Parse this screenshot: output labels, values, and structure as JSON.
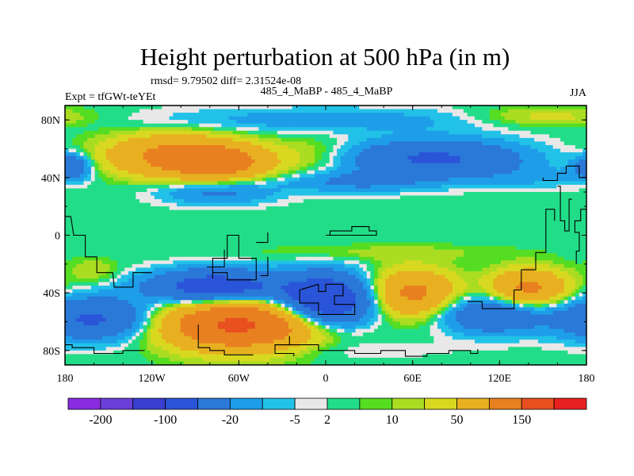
{
  "chart_data": {
    "type": "heatmap",
    "title": "Height perturbation at 500 hPa (in m)",
    "stats_line": "rmsd= 9.79502 diff= 2.31524e-08",
    "left_label": "Expt = tfGWt-teYEt",
    "center_label": "485_4_MaBP - 485_4_MaBP",
    "right_label": "JJA",
    "x_ticks": [
      {
        "lon": -180,
        "label": "180"
      },
      {
        "lon": -120,
        "label": "120W"
      },
      {
        "lon": -60,
        "label": "60W"
      },
      {
        "lon": 0,
        "label": "0"
      },
      {
        "lon": 60,
        "label": "60E"
      },
      {
        "lon": 120,
        "label": "120E"
      },
      {
        "lon": 180,
        "label": "180"
      }
    ],
    "y_ticks": [
      {
        "lat": 80,
        "label": "80N"
      },
      {
        "lat": 40,
        "label": "40N"
      },
      {
        "lat": 0,
        "label": "0"
      },
      {
        "lat": -40,
        "label": "40S"
      },
      {
        "lat": -80,
        "label": "80S"
      }
    ],
    "xlim": [
      -180,
      180
    ],
    "ylim": [
      -90,
      90
    ],
    "colorbar": {
      "colors": [
        "#8a2be2",
        "#6a3fd8",
        "#3a3fd0",
        "#2a55d8",
        "#2a78d8",
        "#1e9ee8",
        "#22c2e8",
        "#e8e8e8",
        "#22dd88",
        "#55dd22",
        "#aadd22",
        "#d8d820",
        "#e8b020",
        "#e88020",
        "#e85020",
        "#e82020"
      ],
      "labels": [
        "-200",
        "-100",
        "-20",
        "-5",
        "2",
        "10",
        "50",
        "150"
      ],
      "label_positions": [
        1,
        3,
        5,
        7,
        8,
        10,
        12,
        14
      ]
    },
    "anomalies": [
      {
        "lon": -105,
        "lat": 55,
        "amp": 60,
        "sx": 32,
        "sy": 10
      },
      {
        "lon": -72,
        "lat": 50,
        "amp": 60,
        "sx": 22,
        "sy": 8
      },
      {
        "lon": -175,
        "lat": 48,
        "amp": -40,
        "sx": 9,
        "sy": 6
      },
      {
        "lon": -10,
        "lat": 55,
        "amp": 12,
        "sx": 22,
        "sy": 9
      },
      {
        "lon": 75,
        "lat": 53,
        "amp": -55,
        "sx": 42,
        "sy": 9
      },
      {
        "lon": -75,
        "lat": 30,
        "amp": -25,
        "sx": 28,
        "sy": 6
      },
      {
        "lon": 20,
        "lat": 37,
        "amp": -22,
        "sx": 35,
        "sy": 5
      },
      {
        "lon": 150,
        "lat": 40,
        "amp": -10,
        "sx": 30,
        "sy": 5
      },
      {
        "lon": 0,
        "lat": 80,
        "amp": -15,
        "sx": 90,
        "sy": 6
      },
      {
        "lon": 150,
        "lat": 82,
        "amp": 15,
        "sx": 35,
        "sy": 5
      },
      {
        "lon": -75,
        "lat": -36,
        "amp": -80,
        "sx": 32,
        "sy": 8
      },
      {
        "lon": 0,
        "lat": -45,
        "amp": -95,
        "sx": 22,
        "sy": 12
      },
      {
        "lon": 60,
        "lat": -40,
        "amp": 60,
        "sx": 20,
        "sy": 11
      },
      {
        "lon": 140,
        "lat": -37,
        "amp": 60,
        "sx": 18,
        "sy": 9
      },
      {
        "lon": 115,
        "lat": -55,
        "amp": -45,
        "sx": 25,
        "sy": 9
      },
      {
        "lon": -60,
        "lat": -62,
        "amp": 110,
        "sx": 35,
        "sy": 12
      },
      {
        "lon": -160,
        "lat": -58,
        "amp": -55,
        "sx": 28,
        "sy": 10
      },
      {
        "lon": -160,
        "lat": -25,
        "amp": 10,
        "sx": 12,
        "sy": 6
      },
      {
        "lon": 40,
        "lat": -12,
        "amp": 7,
        "sx": 60,
        "sy": 4
      },
      {
        "lon": 0,
        "lat": -80,
        "amp": -5,
        "sx": 60,
        "sy": 5
      }
    ],
    "coastlines": [
      [
        [
          -180,
          13
        ],
        [
          -176,
          13
        ],
        [
          -174,
          0
        ],
        [
          -166,
          0
        ],
        [
          -166,
          -15
        ],
        [
          -158,
          -15
        ],
        [
          -158,
          -26
        ],
        [
          -147,
          -26
        ],
        [
          -146,
          -36
        ],
        [
          -133,
          -36
        ],
        [
          -133,
          -26
        ],
        [
          -120,
          -26
        ]
      ],
      [
        [
          -78,
          -30
        ],
        [
          -78,
          -16
        ],
        [
          -68,
          -16
        ],
        [
          -68,
          0
        ],
        [
          -60,
          0
        ],
        [
          -60,
          -16
        ],
        [
          -48,
          -16
        ],
        [
          -48,
          -31
        ],
        [
          -68,
          -31
        ],
        [
          -68,
          -26
        ],
        [
          -78,
          -26
        ]
      ],
      [
        [
          0,
          0
        ],
        [
          3,
          0
        ],
        [
          3,
          3
        ],
        [
          18,
          3
        ],
        [
          18,
          6
        ],
        [
          30,
          6
        ],
        [
          30,
          3
        ],
        [
          35,
          3
        ],
        [
          35,
          0
        ],
        [
          0,
          0
        ]
      ],
      [
        [
          -5,
          -34
        ],
        [
          -5,
          -39
        ],
        [
          0,
          -39
        ],
        [
          0,
          -34
        ],
        [
          12,
          -34
        ],
        [
          12,
          -42
        ],
        [
          6,
          -42
        ],
        [
          6,
          -48
        ],
        [
          20,
          -48
        ],
        [
          20,
          -55
        ],
        [
          -5,
          -55
        ],
        [
          -5,
          -47
        ],
        [
          -18,
          -47
        ],
        [
          -18,
          -38
        ],
        [
          -5,
          -34
        ]
      ],
      [
        [
          98,
          -46
        ],
        [
          108,
          -46
        ],
        [
          108,
          -51
        ],
        [
          130,
          -51
        ],
        [
          130,
          -38
        ],
        [
          135,
          -38
        ],
        [
          135,
          -24
        ],
        [
          145,
          -24
        ],
        [
          145,
          -12
        ],
        [
          152,
          -12
        ],
        [
          152,
          18
        ],
        [
          158,
          18
        ],
        [
          158,
          10
        ]
      ],
      [
        [
          160,
          34
        ],
        [
          162,
          34
        ],
        [
          162,
          10
        ],
        [
          165,
          10
        ],
        [
          165,
          3
        ],
        [
          168,
          3
        ],
        [
          168,
          25
        ],
        [
          170,
          25
        ]
      ],
      [
        [
          173,
          -20
        ],
        [
          173,
          -11
        ],
        [
          175,
          -11
        ],
        [
          175,
          2
        ],
        [
          172,
          2
        ],
        [
          172,
          10
        ],
        [
          176,
          10
        ],
        [
          176,
          18
        ],
        [
          180,
          18
        ]
      ],
      [
        [
          150,
          40
        ],
        [
          150,
          38
        ],
        [
          160,
          38
        ],
        [
          160,
          43
        ],
        [
          166,
          43
        ],
        [
          166,
          48
        ],
        [
          175,
          48
        ],
        [
          175,
          40
        ],
        [
          180,
          40
        ],
        [
          180,
          30
        ],
        [
          178,
          30
        ]
      ],
      [
        [
          -180,
          -76
        ],
        [
          -175,
          -76
        ],
        [
          -175,
          -78
        ],
        [
          -160,
          -78
        ],
        [
          -160,
          -82
        ],
        [
          -140,
          -82
        ],
        [
          -140,
          -80
        ],
        [
          -125,
          -80
        ]
      ],
      [
        [
          -88,
          -62
        ],
        [
          -88,
          -78
        ],
        [
          -80,
          -78
        ],
        [
          -80,
          -80
        ],
        [
          -70,
          -80
        ],
        [
          -70,
          -83
        ],
        [
          -50,
          -83
        ]
      ],
      [
        [
          -35,
          -76
        ],
        [
          -5,
          -76
        ],
        [
          -5,
          -80
        ],
        [
          20,
          -80
        ],
        [
          20,
          -82
        ],
        [
          38,
          -82
        ],
        [
          38,
          -80
        ],
        [
          55,
          -80
        ],
        [
          55,
          -84
        ],
        [
          70,
          -84
        ],
        [
          70,
          -82
        ],
        [
          85,
          -82
        ],
        [
          85,
          -80
        ],
        [
          100,
          -80
        ],
        [
          100,
          -82
        ],
        [
          105,
          -82
        ],
        [
          105,
          -79
        ]
      ],
      [
        [
          -25,
          -70
        ],
        [
          -25,
          -76
        ],
        [
          -35,
          -76
        ],
        [
          -35,
          -82
        ],
        [
          -22,
          -82
        ],
        [
          -22,
          -84
        ]
      ],
      [
        [
          -40,
          -15
        ],
        [
          -40,
          -28
        ],
        [
          -45,
          -28
        ]
      ],
      [
        [
          -40,
          2
        ],
        [
          -40,
          -5
        ],
        [
          -48,
          -5
        ]
      ],
      [
        [
          -70,
          -10
        ],
        [
          -70,
          -22
        ],
        [
          -82,
          -22
        ]
      ]
    ]
  }
}
